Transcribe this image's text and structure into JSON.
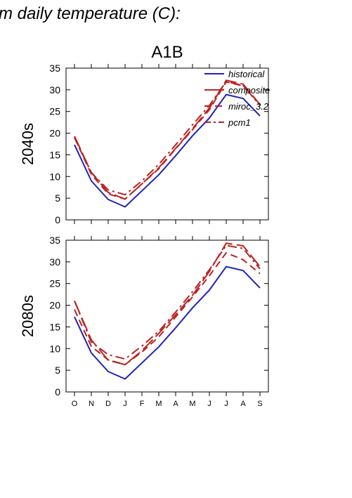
{
  "page_title": "m daily temperature (C):",
  "chart_data": {
    "type": "line",
    "title": "A1B",
    "categories": [
      "O",
      "N",
      "D",
      "J",
      "F",
      "M",
      "A",
      "M",
      "J",
      "J",
      "A",
      "S"
    ],
    "ylim": [
      0,
      35
    ],
    "yticks": [
      0,
      5,
      10,
      15,
      20,
      25,
      30,
      35
    ],
    "grid": false,
    "legend": {
      "placement": "top-right",
      "entries": [
        "historical",
        "composite",
        "miroc_3.2",
        "pcm1"
      ]
    },
    "colors": {
      "historical": "#2222bb",
      "scenario": "#bb2222",
      "axis": "#000000"
    },
    "panels": [
      {
        "ylabel": "2040s",
        "series": [
          {
            "name": "historical",
            "style": "solid",
            "values": [
              17.3,
              9.0,
              4.7,
              3.0,
              6.7,
              10.4,
              14.8,
              19.4,
              23.5,
              28.9,
              28.0,
              24.0
            ]
          },
          {
            "name": "composite",
            "style": "long-dash",
            "values": [
              19.3,
              10.9,
              6.3,
              4.8,
              8.3,
              12.0,
              16.5,
              21.0,
              25.8,
              32.2,
              31.3,
              26.6
            ]
          },
          {
            "name": "miroc_3.2",
            "style": "dash",
            "values": [
              19.0,
              10.5,
              6.0,
              4.8,
              8.3,
              11.8,
              16.4,
              20.8,
              25.4,
              31.8,
              30.9,
              26.7
            ]
          },
          {
            "name": "pcm1",
            "style": "dash-dot",
            "values": [
              19.0,
              10.9,
              6.9,
              5.8,
              9.0,
              12.8,
              17.3,
              21.9,
              26.4,
              31.9,
              31.0,
              26.4
            ]
          }
        ]
      },
      {
        "ylabel": "2080s",
        "series": [
          {
            "name": "historical",
            "style": "solid",
            "values": [
              17.3,
              9.0,
              4.7,
              3.0,
              6.7,
              10.4,
              14.8,
              19.4,
              23.5,
              28.9,
              28.0,
              24.0
            ]
          },
          {
            "name": "composite",
            "style": "long-dash",
            "values": [
              21.0,
              12.0,
              7.3,
              6.3,
              9.5,
              13.5,
              17.8,
              22.3,
              27.8,
              34.3,
              33.7,
              28.9
            ]
          },
          {
            "name": "miroc_3.2",
            "style": "dash",
            "values": [
              19.0,
              10.5,
              7.4,
              6.3,
              9.2,
              12.7,
              17.3,
              21.9,
              26.8,
              32.1,
              30.5,
              27.3
            ]
          },
          {
            "name": "pcm1",
            "style": "dash-dot",
            "values": [
              21.0,
              11.5,
              8.6,
              7.6,
              10.6,
              14.0,
              18.4,
              23.1,
              28.2,
              33.8,
              33.1,
              28.4
            ]
          }
        ]
      }
    ]
  }
}
